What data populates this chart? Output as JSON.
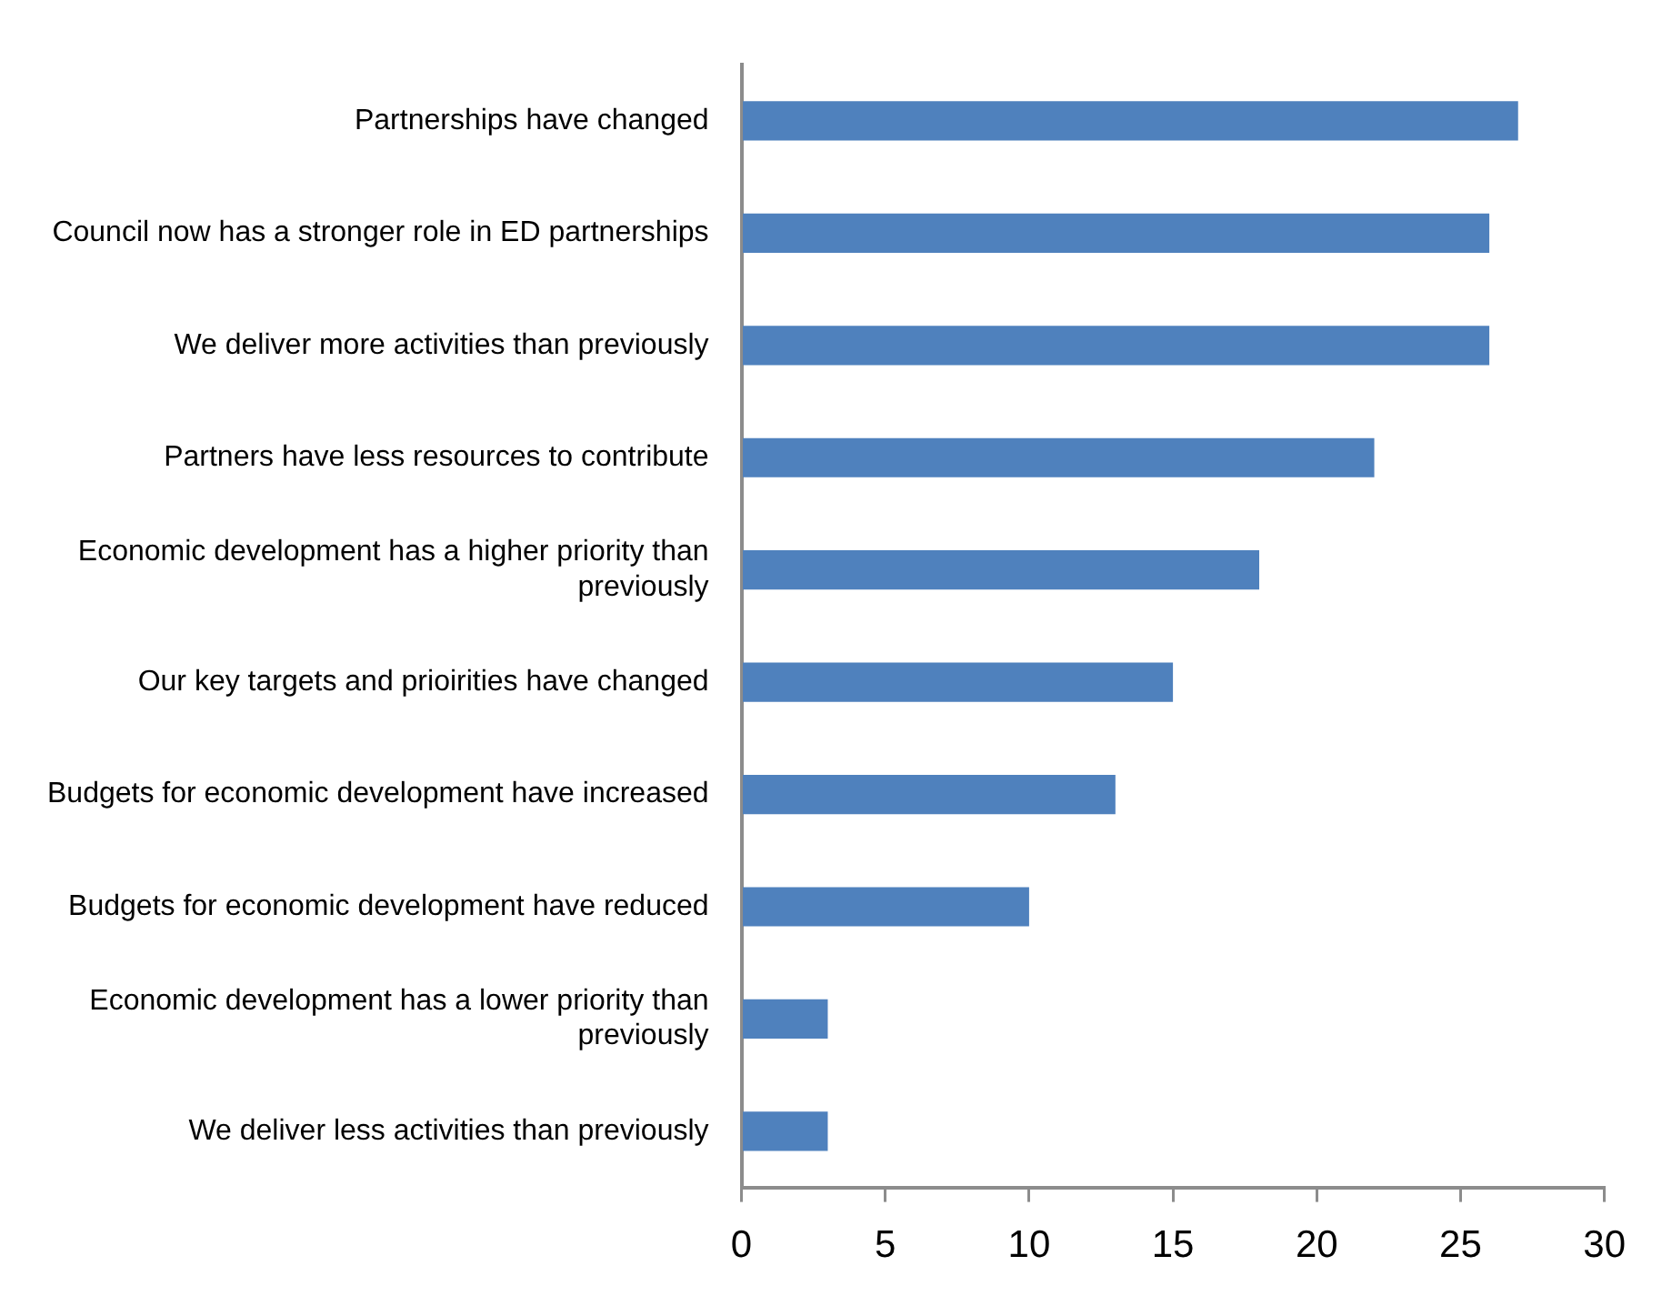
{
  "chart_data": {
    "type": "bar",
    "orientation": "horizontal",
    "categories": [
      "Partnerships have changed",
      "Council now has a stronger role in ED partnerships",
      "We deliver more activities than previously",
      "Partners have less resources to contribute",
      "Economic development has a higher priority than previously",
      "Our key targets and prioirities have changed",
      "Budgets for economic development have increased",
      "Budgets for economic development have reduced",
      "Economic development has a lower priority than previously",
      "We deliver less activities than previously"
    ],
    "values": [
      27,
      26,
      26,
      22,
      18,
      15,
      13,
      10,
      3,
      3
    ],
    "color": "#4f81bd",
    "xlim": [
      0,
      30
    ],
    "xticks": [
      0,
      5,
      10,
      15,
      20,
      25,
      30
    ],
    "grid": false,
    "legend": false
  }
}
